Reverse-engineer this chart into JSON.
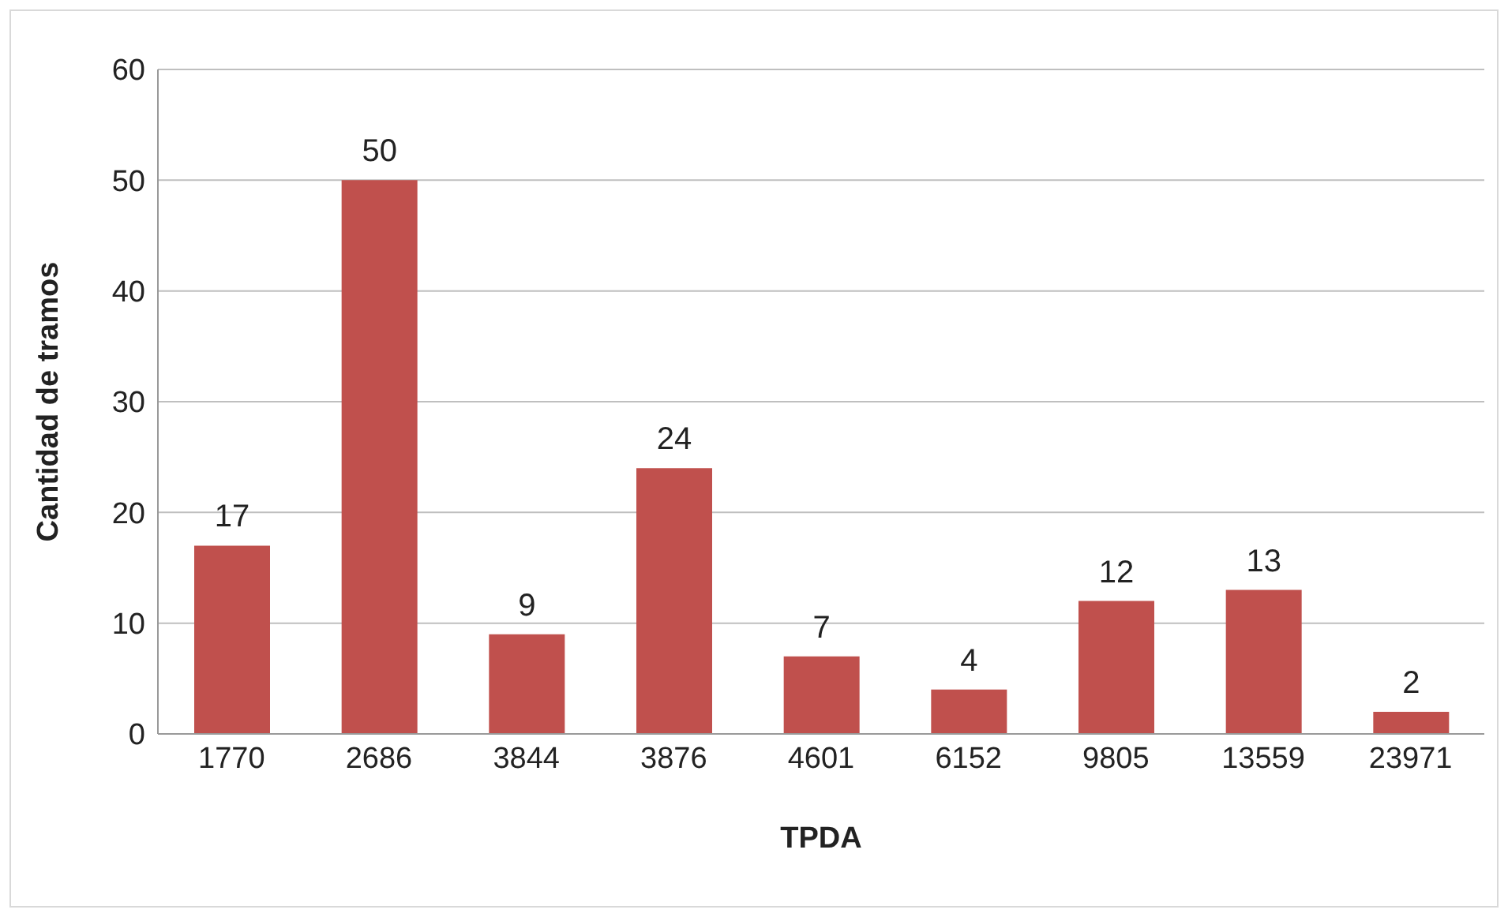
{
  "chart_data": {
    "type": "bar",
    "xlabel": "TPDA",
    "ylabel": "Cantidad de tramos",
    "categories": [
      "1770",
      "2686",
      "3844",
      "3876",
      "4601",
      "6152",
      "9805",
      "13559",
      "23971"
    ],
    "values": [
      17,
      50,
      9,
      24,
      7,
      4,
      12,
      13,
      2
    ],
    "color": "#c0504d",
    "ylim": [
      0,
      60
    ],
    "yticks": [
      0,
      10,
      20,
      30,
      40,
      50,
      60
    ],
    "grid": "y",
    "data_labels": true,
    "legend": false
  }
}
